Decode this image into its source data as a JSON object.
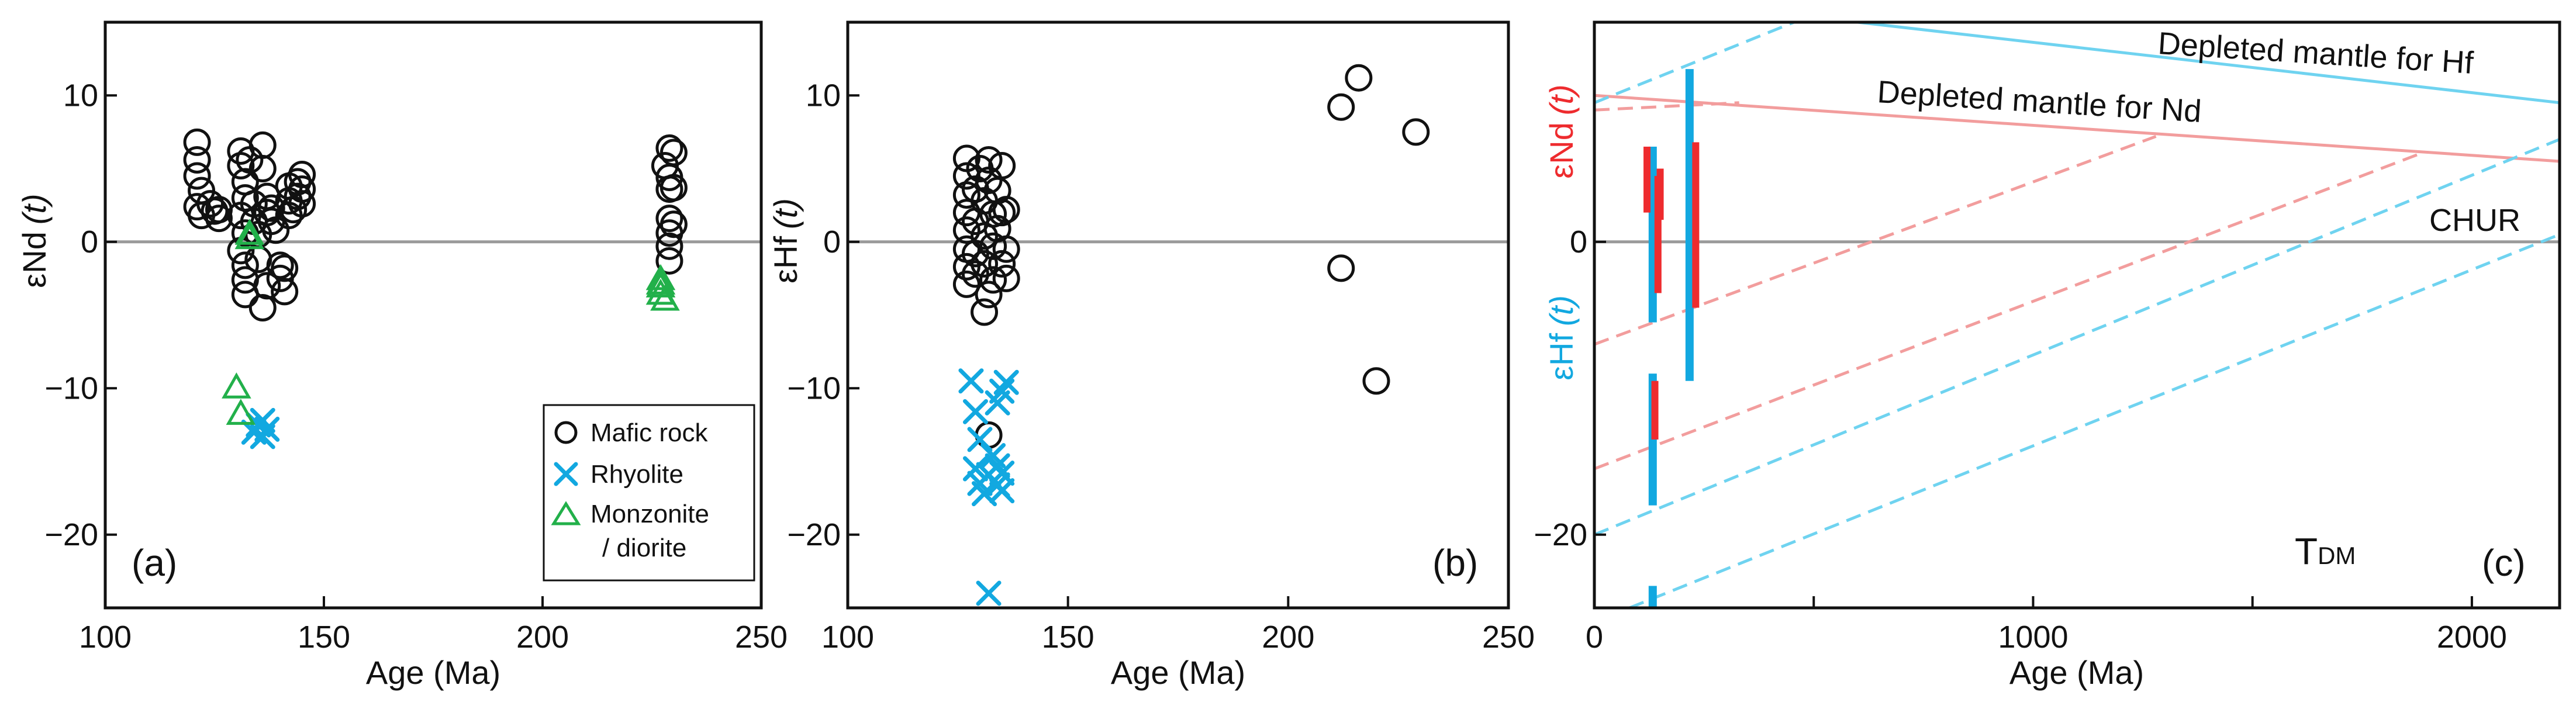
{
  "colors": {
    "black": "#111111",
    "rhyolite": "#12a8e0",
    "monzonite": "#22b04a",
    "nd": "#ee2b2e",
    "hf": "#12a8e0",
    "dm_nd_line": "#f29d9d",
    "dm_hf_line": "#6fd3f0",
    "chur": "#9a9a9a"
  },
  "chart_data": [
    {
      "id": "a",
      "type": "scatter",
      "panel_letter": "(a)",
      "xlabel": "Age (Ma)",
      "ylabel_main": "εNd",
      "ylabel_t": "(t)",
      "xlim": [
        100,
        250
      ],
      "ylim": [
        -25,
        15
      ],
      "xticks": [
        100,
        150,
        200,
        250
      ],
      "yticks": [
        10,
        0,
        -10,
        -20
      ],
      "ytick_labels": [
        "10",
        "0",
        "−10",
        "−20"
      ],
      "legend": {
        "position": "bottom-right",
        "entries": [
          {
            "label": "Mafic rock",
            "marker": "circle",
            "color": "#111111"
          },
          {
            "label": "Rhyolite",
            "marker": "x",
            "color": "#12a8e0"
          },
          {
            "label": "Monzonite",
            "label2": "/ diorite",
            "marker": "triangle",
            "color": "#22b04a"
          }
        ]
      },
      "series": [
        {
          "name": "Mafic rock",
          "marker": "circle",
          "color": "#111111",
          "points": [
            [
              121,
              6.8
            ],
            [
              121,
              5.6
            ],
            [
              121,
              4.5
            ],
            [
              122,
              3.5
            ],
            [
              121,
              2.4
            ],
            [
              122,
              1.8
            ],
            [
              124,
              2.6
            ],
            [
              125,
              2.1
            ],
            [
              126,
              2.2
            ],
            [
              126,
              1.6
            ],
            [
              131,
              6.2
            ],
            [
              131,
              5.2
            ],
            [
              132,
              4.1
            ],
            [
              132,
              3.0
            ],
            [
              131,
              1.8
            ],
            [
              132,
              0.6
            ],
            [
              131,
              -0.6
            ],
            [
              132,
              -1.6
            ],
            [
              132,
              -2.6
            ],
            [
              132,
              -3.6
            ],
            [
              133,
              5.6
            ],
            [
              134,
              2.6
            ],
            [
              134,
              1.4
            ],
            [
              135,
              0.5
            ],
            [
              135,
              -1.2
            ],
            [
              136,
              6.6
            ],
            [
              136,
              5.0
            ],
            [
              137,
              3.1
            ],
            [
              137,
              2.0
            ],
            [
              136,
              -4.5
            ],
            [
              137,
              -3.0
            ],
            [
              138,
              2.3
            ],
            [
              138,
              1.4
            ],
            [
              139,
              0.8
            ],
            [
              140,
              -1.6
            ],
            [
              140,
              -2.5
            ],
            [
              141,
              -3.4
            ],
            [
              141,
              -1.8
            ],
            [
              142,
              1.8
            ],
            [
              142,
              2.8
            ],
            [
              142,
              3.8
            ],
            [
              143,
              2.2
            ],
            [
              144,
              3.1
            ],
            [
              144,
              4.1
            ],
            [
              145,
              4.6
            ],
            [
              145,
              3.6
            ],
            [
              145,
              2.6
            ],
            [
              228,
              5.2
            ],
            [
              229,
              6.4
            ],
            [
              229,
              4.4
            ],
            [
              229,
              3.6
            ],
            [
              230,
              6.1
            ],
            [
              230,
              3.7
            ],
            [
              229,
              1.6
            ],
            [
              229,
              0.6
            ],
            [
              229,
              -0.3
            ],
            [
              229,
              -1.3
            ],
            [
              230,
              1.2
            ]
          ]
        },
        {
          "name": "Rhyolite",
          "marker": "x",
          "color": "#12a8e0",
          "points": [
            [
              134,
              -13.0
            ],
            [
              135,
              -12.5
            ],
            [
              136,
              -13.3
            ],
            [
              136,
              -12.2
            ],
            [
              137,
              -12.8
            ]
          ]
        },
        {
          "name": "Monzonite / diorite",
          "marker": "triangle",
          "color": "#22b04a",
          "points": [
            [
              133,
              0.5
            ],
            [
              133,
              0.2
            ],
            [
              130,
              -10.0
            ],
            [
              131,
              -11.8
            ],
            [
              227,
              -2.6
            ],
            [
              227,
              -3.1
            ],
            [
              227,
              -3.6
            ],
            [
              228,
              -4.0
            ],
            [
              227,
              -2.9
            ]
          ]
        }
      ]
    },
    {
      "id": "b",
      "type": "scatter",
      "panel_letter": "(b)",
      "xlabel": "Age (Ma)",
      "ylabel_main": "εHf",
      "ylabel_t": "(t)",
      "xlim": [
        100,
        250
      ],
      "ylim": [
        -25,
        15
      ],
      "xticks": [
        100,
        150,
        200,
        250
      ],
      "yticks": [
        10,
        0,
        -10,
        -20
      ],
      "ytick_labels": [
        "10",
        "0",
        "−10",
        "−20"
      ],
      "series": [
        {
          "name": "Mafic rock",
          "marker": "circle",
          "color": "#111111",
          "points": [
            [
              127,
              5.7
            ],
            [
              127,
              4.5
            ],
            [
              127,
              3.2
            ],
            [
              127,
              2.0
            ],
            [
              127,
              0.8
            ],
            [
              127,
              -0.5
            ],
            [
              127,
              -1.7
            ],
            [
              127,
              -2.9
            ],
            [
              129,
              3.6
            ],
            [
              129,
              1.4
            ],
            [
              129,
              -0.8
            ],
            [
              129,
              -2.2
            ],
            [
              130,
              5.0
            ],
            [
              131,
              2.8
            ],
            [
              131,
              0.4
            ],
            [
              131,
              -1.5
            ],
            [
              131,
              -4.8
            ],
            [
              132,
              5.6
            ],
            [
              132,
              4.2
            ],
            [
              133,
              1.9
            ],
            [
              133,
              -0.3
            ],
            [
              133,
              -2.6
            ],
            [
              134,
              3.5
            ],
            [
              134,
              0.9
            ],
            [
              135,
              5.2
            ],
            [
              135,
              2.0
            ],
            [
              135,
              -1.5
            ],
            [
              136,
              -0.5
            ],
            [
              136,
              -2.5
            ],
            [
              136,
              2.2
            ],
            [
              132,
              -3.6
            ],
            [
              132,
              -13.2
            ],
            [
              212,
              9.2
            ],
            [
              216,
              11.2
            ],
            [
              229,
              7.5
            ],
            [
              212,
              -1.8
            ],
            [
              220,
              -9.5
            ]
          ]
        },
        {
          "name": "Rhyolite",
          "marker": "x",
          "color": "#12a8e0",
          "points": [
            [
              128,
              -9.5
            ],
            [
              129,
              -11.6
            ],
            [
              130,
              -13.5
            ],
            [
              129,
              -15.5
            ],
            [
              130,
              -16.5
            ],
            [
              131,
              -17.2
            ],
            [
              132,
              -15.9
            ],
            [
              133,
              -14.6
            ],
            [
              132,
              -24.0
            ],
            [
              134,
              -15.3
            ],
            [
              134,
              -16.6
            ],
            [
              135,
              -17.0
            ],
            [
              134,
              -11.0
            ],
            [
              135,
              -10.2
            ],
            [
              136,
              -9.6
            ],
            [
              135,
              -15.8
            ]
          ]
        }
      ]
    },
    {
      "id": "c",
      "type": "line",
      "panel_letter": "(c)",
      "xlabel": "Age (Ma)",
      "ylabel_nd": "εNd",
      "ylabel_hf": "εHf",
      "ylabel_t": "(t)",
      "xlim": [
        0,
        2200
      ],
      "ylim": [
        -25,
        15
      ],
      "xticks": [
        0,
        1000,
        2000
      ],
      "xticks_minor": [
        500,
        1500
      ],
      "yticks": [
        0,
        -20
      ],
      "ytick_labels": [
        "0",
        "−20"
      ],
      "tdm_label": "T",
      "tdm_sub": "DM",
      "annotations": {
        "dm_hf": "Depleted mantle for Hf",
        "dm_nd": "Depleted mantle for Nd",
        "chur": "CHUR"
      },
      "reference_lines": [
        {
          "name": "Depleted mantle for Hf",
          "points": [
            [
              600,
              15.0
            ],
            [
              2200,
              9.5
            ]
          ],
          "color": "#6fd3f0"
        },
        {
          "name": "Depleted mantle for Nd",
          "points": [
            [
              0,
              10.0
            ],
            [
              2200,
              5.5
            ]
          ],
          "color": "#f29d9d"
        },
        {
          "name": "CHUR",
          "points": [
            [
              0,
              0
            ],
            [
              2200,
              0
            ]
          ],
          "color": "#9a9a9a"
        }
      ],
      "evolution_lines": [
        {
          "element": "Nd",
          "points": [
            [
              0,
              9.0
            ],
            [
              330,
              9.5
            ]
          ],
          "color": "#f29d9d"
        },
        {
          "element": "Nd",
          "points": [
            [
              0,
              -7.0
            ],
            [
              1280,
              7.2
            ]
          ],
          "color": "#f29d9d"
        },
        {
          "element": "Nd",
          "points": [
            [
              0,
              -15.5
            ],
            [
              1880,
              6.0
            ]
          ],
          "color": "#f29d9d"
        },
        {
          "element": "Hf",
          "points": [
            [
              0,
              9.5
            ],
            [
              480,
              15.3
            ]
          ],
          "color": "#6fd3f0"
        },
        {
          "element": "Hf",
          "points": [
            [
              0,
              -20.0
            ],
            [
              2200,
              7.0
            ]
          ],
          "color": "#6fd3f0"
        },
        {
          "element": "Hf",
          "points": [
            [
              80,
              -25.0
            ],
            [
              2200,
              0.5
            ]
          ],
          "color": "#6fd3f0"
        }
      ],
      "range_bars": [
        {
          "element": "Hf",
          "age": 133,
          "range": [
            -5.5,
            6.5
          ],
          "color": "#12a8e0"
        },
        {
          "element": "Hf",
          "age": 133,
          "range": [
            -18.0,
            -9.0
          ],
          "color": "#12a8e0"
        },
        {
          "element": "Hf",
          "age": 133,
          "range": [
            -26.0,
            -23.5
          ],
          "color": "#12a8e0"
        },
        {
          "element": "Hf",
          "age": 217,
          "range": [
            -9.5,
            11.8
          ],
          "color": "#12a8e0"
        },
        {
          "element": "Nd",
          "age": 120,
          "range": [
            2.0,
            6.5
          ],
          "color": "#ee2b2e"
        },
        {
          "element": "Nd",
          "age": 145,
          "range": [
            -3.5,
            4.5
          ],
          "color": "#ee2b2e"
        },
        {
          "element": "Nd",
          "age": 150,
          "range": [
            1.5,
            5.0
          ],
          "color": "#ee2b2e"
        },
        {
          "element": "Nd",
          "age": 231,
          "range": [
            -4.5,
            6.8
          ],
          "color": "#ee2b2e"
        },
        {
          "element": "Nd",
          "age": 138,
          "range": [
            -13.5,
            -9.5
          ],
          "color": "#ee2b2e"
        }
      ]
    }
  ]
}
